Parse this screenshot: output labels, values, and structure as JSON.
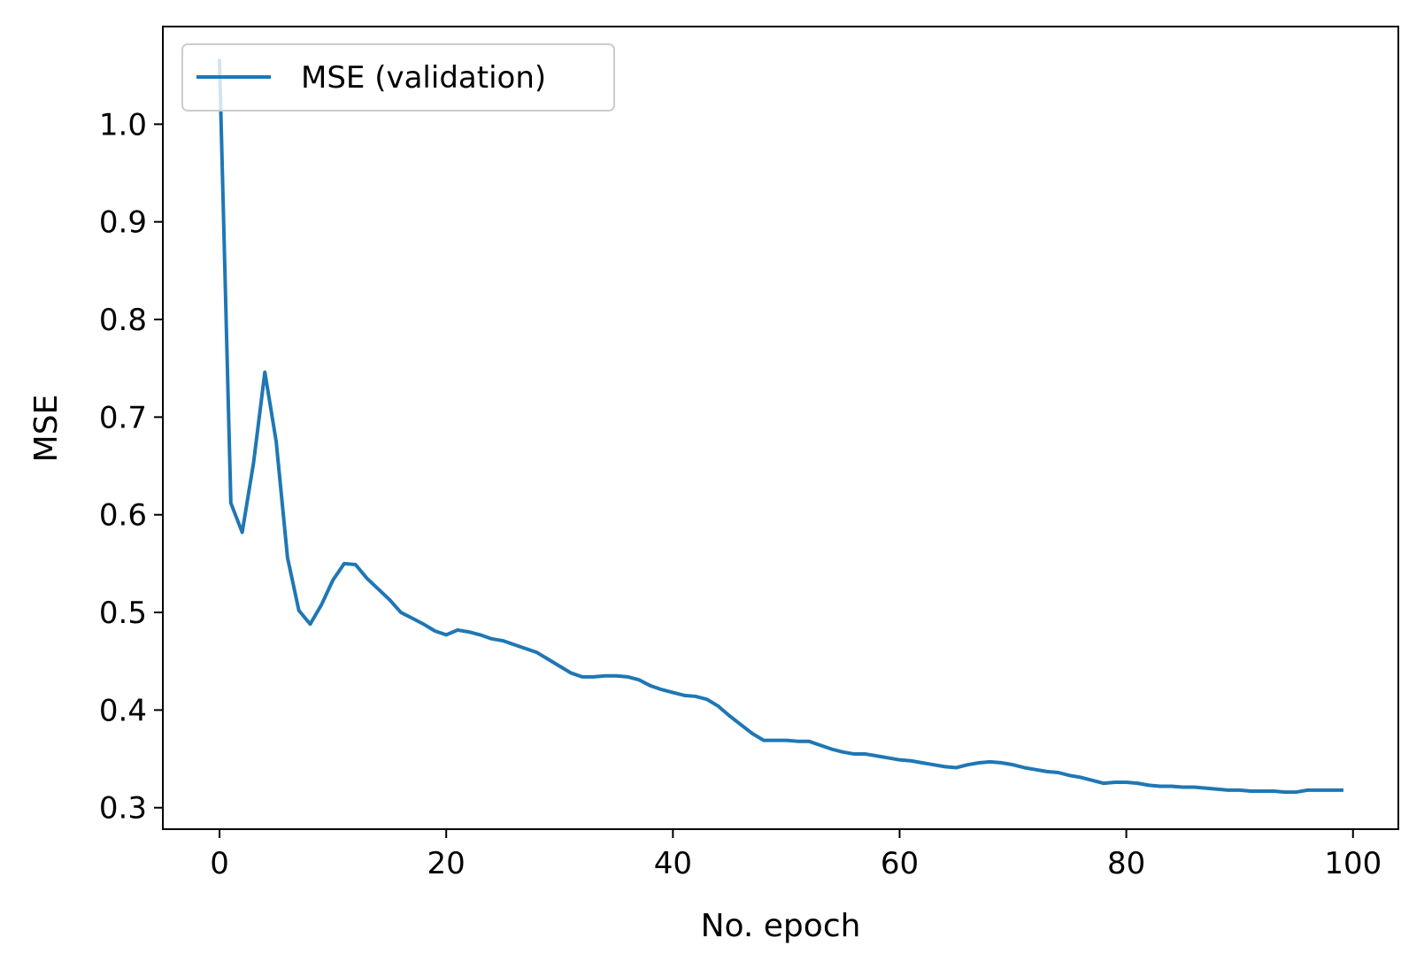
{
  "chart_data": {
    "type": "line",
    "xlabel": "No. epoch",
    "ylabel": "MSE",
    "xlim": [
      -5,
      104
    ],
    "ylim": [
      0.278,
      1.1
    ],
    "xticks": [
      0,
      20,
      40,
      60,
      80,
      100
    ],
    "yticks": [
      0.3,
      0.4,
      0.5,
      0.6,
      0.7,
      0.8,
      0.9,
      1.0
    ],
    "xtick_labels": [
      "0",
      "20",
      "40",
      "60",
      "80",
      "100"
    ],
    "ytick_labels": [
      "0.3",
      "0.4",
      "0.5",
      "0.6",
      "0.7",
      "0.8",
      "0.9",
      "1.0"
    ],
    "grid": false,
    "legend_position": "top-left",
    "series": [
      {
        "name": "MSE (validation)",
        "color": "#1f77b4",
        "x": [
          0,
          1,
          2,
          3,
          4,
          5,
          6,
          7,
          8,
          9,
          10,
          11,
          12,
          13,
          14,
          15,
          16,
          17,
          18,
          19,
          20,
          21,
          22,
          23,
          24,
          25,
          26,
          27,
          28,
          29,
          30,
          31,
          32,
          33,
          34,
          35,
          36,
          37,
          38,
          39,
          40,
          41,
          42,
          43,
          44,
          45,
          46,
          47,
          48,
          49,
          50,
          51,
          52,
          53,
          54,
          55,
          56,
          57,
          58,
          59,
          60,
          61,
          62,
          63,
          64,
          65,
          66,
          67,
          68,
          69,
          70,
          71,
          72,
          73,
          74,
          75,
          76,
          77,
          78,
          79,
          80,
          81,
          82,
          83,
          84,
          85,
          86,
          87,
          88,
          89,
          90,
          91,
          92,
          93,
          94,
          95,
          96,
          97,
          98,
          99
        ],
        "values": [
          1.065,
          0.612,
          0.582,
          0.653,
          0.746,
          0.675,
          0.556,
          0.502,
          0.488,
          0.508,
          0.533,
          0.55,
          0.549,
          0.535,
          0.524,
          0.513,
          0.5,
          0.494,
          0.488,
          0.481,
          0.477,
          0.482,
          0.48,
          0.477,
          0.473,
          0.471,
          0.467,
          0.463,
          0.459,
          0.452,
          0.445,
          0.438,
          0.434,
          0.434,
          0.435,
          0.435,
          0.434,
          0.431,
          0.425,
          0.421,
          0.418,
          0.415,
          0.414,
          0.411,
          0.404,
          0.394,
          0.385,
          0.376,
          0.369,
          0.369,
          0.369,
          0.368,
          0.368,
          0.364,
          0.36,
          0.357,
          0.355,
          0.355,
          0.353,
          0.351,
          0.349,
          0.348,
          0.346,
          0.344,
          0.342,
          0.341,
          0.344,
          0.346,
          0.347,
          0.346,
          0.344,
          0.341,
          0.339,
          0.337,
          0.336,
          0.333,
          0.331,
          0.328,
          0.325,
          0.326,
          0.326,
          0.325,
          0.323,
          0.322,
          0.322,
          0.321,
          0.321,
          0.32,
          0.319,
          0.318,
          0.318,
          0.317,
          0.317,
          0.317,
          0.316,
          0.316,
          0.318,
          0.318,
          0.318,
          0.318
        ]
      }
    ]
  }
}
